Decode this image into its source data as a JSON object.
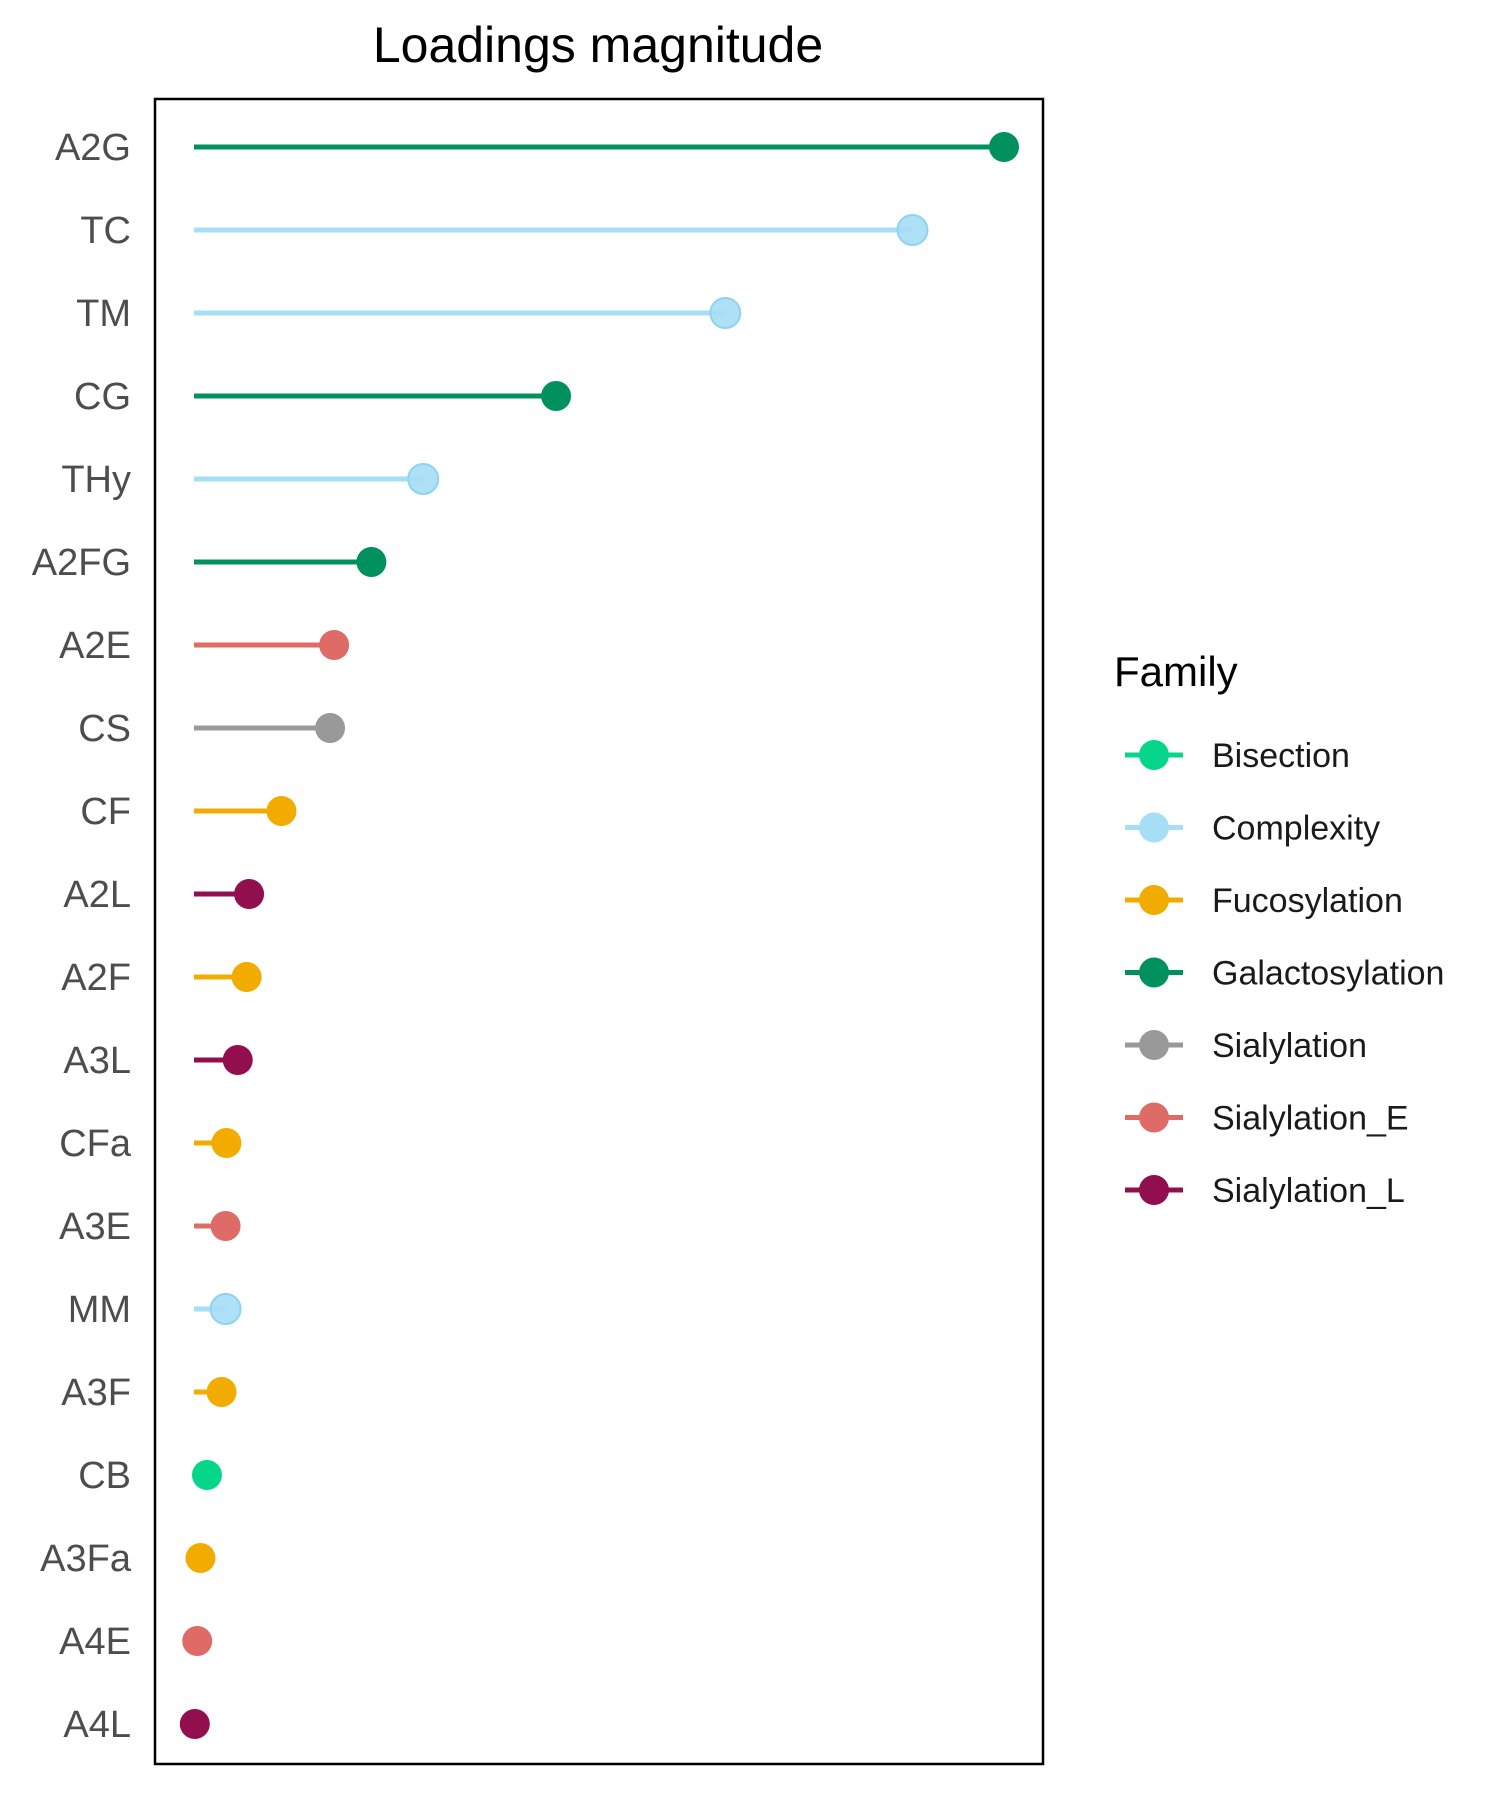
{
  "chart_data": {
    "type": "lollipop",
    "title": "Loadings magnitude",
    "xlabel": "",
    "ylabel": "",
    "x_axis_shown": false,
    "xlim": [
      0,
      1
    ],
    "legend": {
      "title": "Family",
      "position": "right"
    },
    "families": [
      {
        "name": "Bisection",
        "color": "#06D68A"
      },
      {
        "name": "Complexity",
        "color": "#A6DEF5"
      },
      {
        "name": "Fucosylation",
        "color": "#F2AB00"
      },
      {
        "name": "Galactosylation",
        "color": "#00915E"
      },
      {
        "name": "Sialylation",
        "color": "#999999"
      },
      {
        "name": "Sialylation_E",
        "color": "#DE6B66"
      },
      {
        "name": "Sialylation_L",
        "color": "#910F4F"
      }
    ],
    "points": [
      {
        "label": "A2G",
        "family": "Galactosylation",
        "value": 1.0
      },
      {
        "label": "TC",
        "family": "Complexity",
        "value": 0.887
      },
      {
        "label": "TM",
        "family": "Complexity",
        "value": 0.656
      },
      {
        "label": "CG",
        "family": "Galactosylation",
        "value": 0.447
      },
      {
        "label": "THy",
        "family": "Complexity",
        "value": 0.283
      },
      {
        "label": "A2FG",
        "family": "Galactosylation",
        "value": 0.219
      },
      {
        "label": "A2E",
        "family": "Sialylation_E",
        "value": 0.173
      },
      {
        "label": "CS",
        "family": "Sialylation",
        "value": 0.168
      },
      {
        "label": "CF",
        "family": "Fucosylation",
        "value": 0.108
      },
      {
        "label": "A2L",
        "family": "Sialylation_L",
        "value": 0.068
      },
      {
        "label": "A2F",
        "family": "Fucosylation",
        "value": 0.065
      },
      {
        "label": "A3L",
        "family": "Sialylation_L",
        "value": 0.054
      },
      {
        "label": "CFa",
        "family": "Fucosylation",
        "value": 0.04
      },
      {
        "label": "A3E",
        "family": "Sialylation_E",
        "value": 0.039
      },
      {
        "label": "MM",
        "family": "Complexity",
        "value": 0.039
      },
      {
        "label": "A3F",
        "family": "Fucosylation",
        "value": 0.034
      },
      {
        "label": "CB",
        "family": "Bisection",
        "value": 0.016
      },
      {
        "label": "A3Fa",
        "family": "Fucosylation",
        "value": 0.008
      },
      {
        "label": "A4E",
        "family": "Sialylation_E",
        "value": 0.004
      },
      {
        "label": "A4L",
        "family": "Sialylation_L",
        "value": 0.001
      }
    ]
  }
}
